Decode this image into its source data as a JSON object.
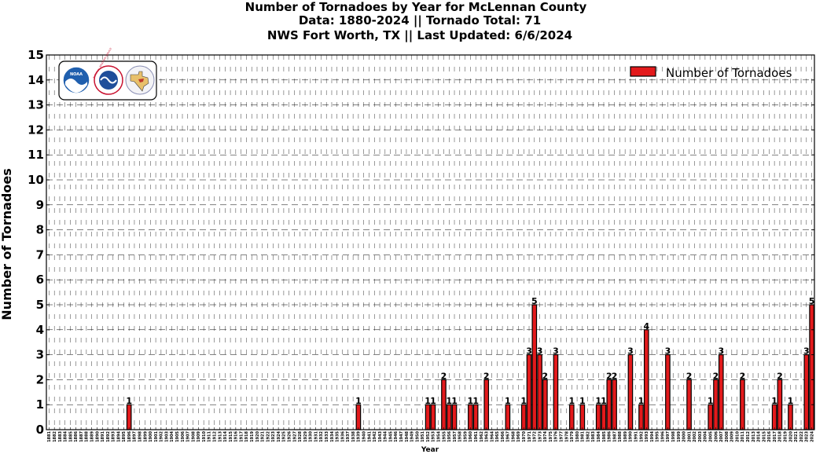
{
  "chart_data": {
    "type": "bar",
    "title_lines": [
      "Number of Tornadoes by Year for McLennan County",
      "Data: 1880-2024 || Tornado Total: 71",
      "NWS Fort Worth, TX || Last Updated: 6/6/2024"
    ],
    "xlabel": "Year",
    "ylabel": "Number of Tornadoes",
    "ylim": [
      0,
      15
    ],
    "yticks": [
      0,
      1,
      2,
      3,
      4,
      5,
      6,
      7,
      8,
      9,
      10,
      11,
      12,
      13,
      14,
      15
    ],
    "x_start": 1881,
    "x_end": 2024,
    "grid": true,
    "legend": {
      "position": "top-right"
    },
    "bar_color": "#e31a1c",
    "series": [
      {
        "name": "Number of Tornadoes",
        "points": [
          {
            "x": 1896,
            "y": 1
          },
          {
            "x": 1939,
            "y": 1
          },
          {
            "x": 1952,
            "y": 1
          },
          {
            "x": 1953,
            "y": 1
          },
          {
            "x": 1955,
            "y": 2
          },
          {
            "x": 1956,
            "y": 1
          },
          {
            "x": 1957,
            "y": 1
          },
          {
            "x": 1960,
            "y": 1
          },
          {
            "x": 1961,
            "y": 1
          },
          {
            "x": 1963,
            "y": 2
          },
          {
            "x": 1967,
            "y": 1
          },
          {
            "x": 1970,
            "y": 1
          },
          {
            "x": 1971,
            "y": 3
          },
          {
            "x": 1972,
            "y": 5
          },
          {
            "x": 1973,
            "y": 3
          },
          {
            "x": 1974,
            "y": 2
          },
          {
            "x": 1976,
            "y": 3
          },
          {
            "x": 1979,
            "y": 1
          },
          {
            "x": 1981,
            "y": 1
          },
          {
            "x": 1984,
            "y": 1
          },
          {
            "x": 1985,
            "y": 1
          },
          {
            "x": 1986,
            "y": 2
          },
          {
            "x": 1987,
            "y": 2
          },
          {
            "x": 1990,
            "y": 3
          },
          {
            "x": 1992,
            "y": 1
          },
          {
            "x": 1993,
            "y": 4
          },
          {
            "x": 1997,
            "y": 3
          },
          {
            "x": 2001,
            "y": 2
          },
          {
            "x": 2005,
            "y": 1
          },
          {
            "x": 2006,
            "y": 2
          },
          {
            "x": 2007,
            "y": 3
          },
          {
            "x": 2011,
            "y": 2
          },
          {
            "x": 2017,
            "y": 1
          },
          {
            "x": 2018,
            "y": 2
          },
          {
            "x": 2020,
            "y": 1
          },
          {
            "x": 2023,
            "y": 3
          },
          {
            "x": 2024,
            "y": 5
          }
        ]
      }
    ]
  },
  "logos": [
    {
      "name": "noaa-logo",
      "text": "NOAA"
    },
    {
      "name": "nws-logo",
      "text": "NATIONAL WEATHER SERVICE"
    },
    {
      "name": "texas-logo",
      "text": ""
    }
  ]
}
